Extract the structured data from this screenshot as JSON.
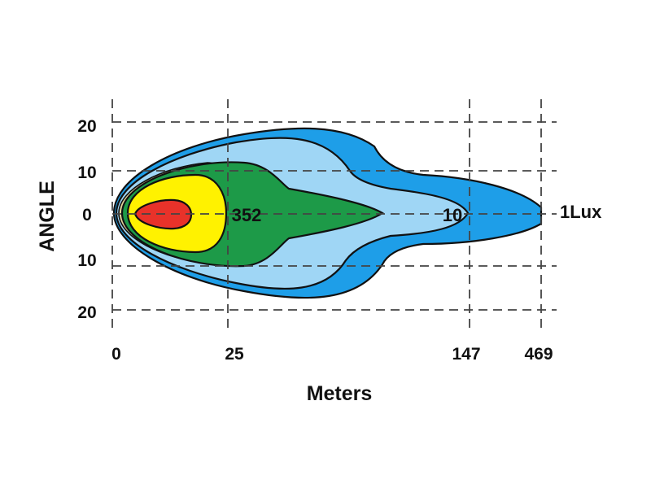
{
  "chart_data": {
    "type": "isolux-beam-pattern",
    "title": "",
    "xlabel": "Meters",
    "ylabel": "ANGLE",
    "x_ticks": [
      "0",
      "25",
      "147",
      "469"
    ],
    "y_ticks": [
      "20",
      "10",
      "0",
      "10",
      "20"
    ],
    "grid": "dashed",
    "isolux_labels": [
      {
        "text": "352",
        "zone": "green"
      },
      {
        "text": "10",
        "zone": "light-blue"
      },
      {
        "text": "1Lux",
        "zone": "outer"
      }
    ],
    "zones": [
      {
        "name": "outer",
        "color": "#1e9ee8"
      },
      {
        "name": "light-blue",
        "color": "#9fd6f5"
      },
      {
        "name": "tan",
        "color": "#e2d49a"
      },
      {
        "name": "green",
        "color": "#1d9a48"
      },
      {
        "name": "yellow",
        "color": "#fff200"
      },
      {
        "name": "red",
        "color": "#e8322a"
      }
    ]
  }
}
